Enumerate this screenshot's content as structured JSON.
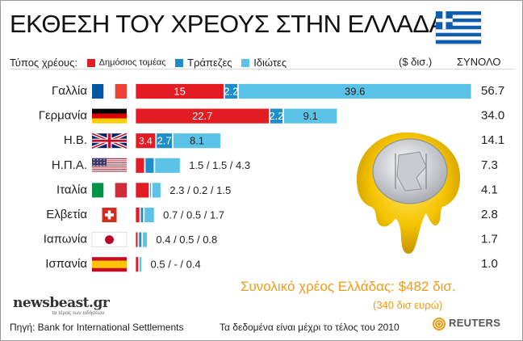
{
  "title": "ΕΚΘΕΣΗ ΤΟΥ ΧΡΕΟΥΣ ΣΤΗΝ ΕΛΛΑΔΑ",
  "legend": {
    "label": "Τύπος χρέους:",
    "public": "Δημόσιος τομέας",
    "banks": "Τράπεζες",
    "private": "Ιδιώτες"
  },
  "units": "($ δισ.)",
  "total_header": "ΣΥΝΟΛΟ",
  "greece_total": "Συνολικό χρέος Ελλάδας: $482 δισ.",
  "greece_total_eur": "(340 δισ  ευρώ)",
  "logo": "newsbeast.gr",
  "logo_sub": "τα τέρας των ειδήσεων",
  "source": "Πηγή: Bank for International Settlements",
  "note": "Τα δεδομένα είναι μέχρι το τέλος του 2010",
  "reuters": "REUTERS",
  "colors": {
    "public": "#e31b23",
    "banks": "#1d8ec9",
    "private": "#5bc3e7",
    "accent": "#f19a1a"
  },
  "chart_data": {
    "type": "bar",
    "orientation": "horizontal",
    "stacked": true,
    "categories": [
      "Γαλλία",
      "Γερμανία",
      "Η.Β.",
      "Η.Π.Α.",
      "Ιταλία",
      "Ελβετία",
      "Ιαπωνία",
      "Ισπανία"
    ],
    "flags": [
      "france",
      "germany",
      "uk",
      "usa",
      "italy",
      "switzerland",
      "japan",
      "spain"
    ],
    "series": [
      {
        "name": "Δημόσιος τομέας",
        "color": "#e31b23",
        "values": [
          15,
          22.7,
          3.4,
          1.5,
          2.3,
          0.7,
          0.4,
          0.5
        ]
      },
      {
        "name": "Τράπεζες",
        "color": "#1d8ec9",
        "values": [
          2.2,
          2.2,
          2.7,
          1.5,
          0.2,
          0.5,
          0.5,
          0
        ]
      },
      {
        "name": "Ιδιώτες",
        "color": "#5bc3e7",
        "values": [
          39.6,
          9.1,
          8.1,
          4.3,
          1.5,
          1.7,
          0.8,
          0.4
        ]
      }
    ],
    "bar_labels": [
      [
        "15",
        "2.2",
        "39.6"
      ],
      [
        "22.7",
        "2.2",
        "9.1"
      ],
      [
        "3.4",
        "2.7",
        "8.1"
      ],
      "1.5 / 1.5 / 4.3",
      "2.3 / 0.2 / 1.5",
      "0.7 / 0.5 / 1.7",
      "0.4 / 0.5 / 0.8",
      "0.5 / - / 0.4"
    ],
    "totals": [
      "56.7",
      "34.0",
      "14.1",
      "7.3",
      "4.1",
      "2.8",
      "1.7",
      "1.0"
    ],
    "xlim": [
      0,
      56.8
    ],
    "grid": false,
    "legend_position": "top"
  }
}
